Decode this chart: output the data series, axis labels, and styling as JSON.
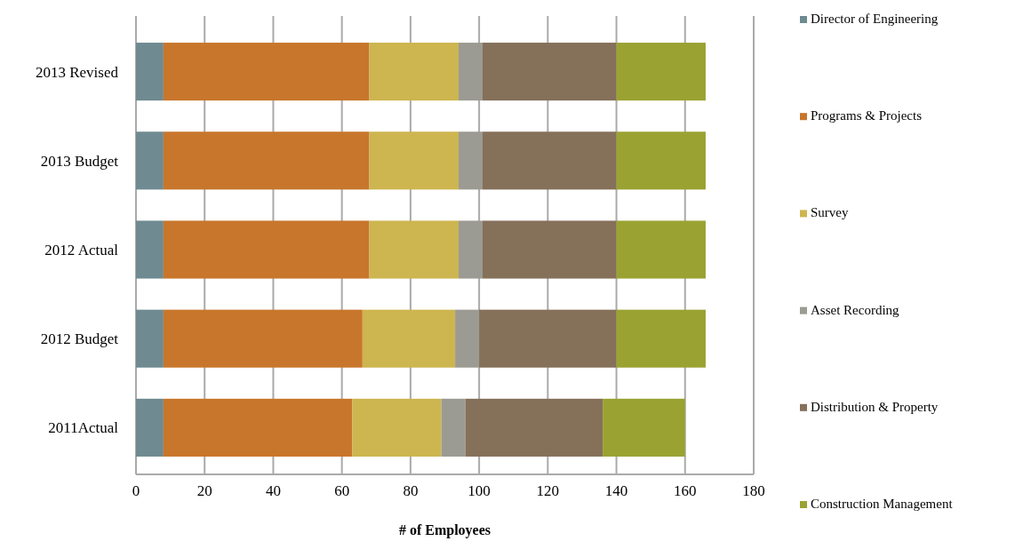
{
  "chart_data": {
    "type": "bar",
    "orientation": "horizontal",
    "stacked": true,
    "xlabel": "# of Employees",
    "categories": [
      "2013 Revised",
      "2013 Budget",
      "2012 Actual",
      "2012 Budget",
      "2011Actual"
    ],
    "series": [
      {
        "name": "Director of Engineering",
        "color": "#6f8a91",
        "values": [
          8,
          8,
          8,
          8,
          8
        ]
      },
      {
        "name": "Programs & Projects",
        "color": "#c8762c",
        "values": [
          60,
          60,
          60,
          58,
          55
        ]
      },
      {
        "name": "Survey",
        "color": "#cdb54f",
        "values": [
          26,
          26,
          26,
          27,
          26
        ]
      },
      {
        "name": "Asset Recording",
        "color": "#9b9b93",
        "values": [
          7,
          7,
          7,
          7,
          7
        ]
      },
      {
        "name": "Distribution & Property",
        "color": "#85705a",
        "values": [
          39,
          39,
          39,
          40,
          40
        ]
      },
      {
        "name": "Construction Management",
        "color": "#9aa232",
        "values": [
          26,
          26,
          26,
          26,
          24
        ]
      }
    ],
    "xlim": [
      0,
      180
    ],
    "xticks": [
      0,
      20,
      40,
      60,
      80,
      100,
      120,
      140,
      160,
      180
    ],
    "grid": "x",
    "legend": "right"
  }
}
